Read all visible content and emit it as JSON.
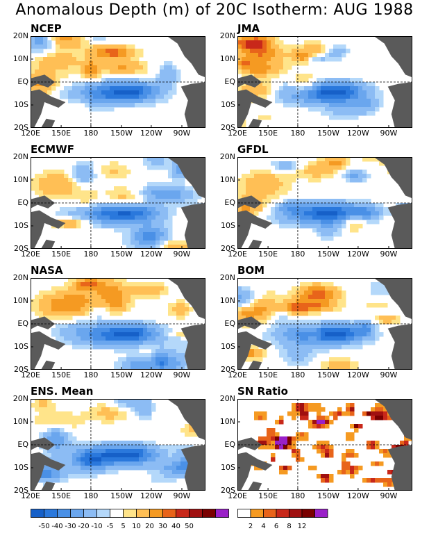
{
  "title": "Anomalous Depth (m) of 20C Isotherm: AUG 1988",
  "lat_labels": [
    "20N",
    "10N",
    "EQ",
    "10S",
    "20S"
  ],
  "lon_labels": [
    "120E",
    "150E",
    "180",
    "150W",
    "120W",
    "90W"
  ],
  "panels": [
    {
      "label": "NCEP",
      "field": "anomaly"
    },
    {
      "label": "JMA",
      "field": "anomaly"
    },
    {
      "label": "ECMWF",
      "field": "anomaly"
    },
    {
      "label": "GFDL",
      "field": "anomaly"
    },
    {
      "label": "NASA",
      "field": "anomaly"
    },
    {
      "label": "BOM",
      "field": "anomaly"
    },
    {
      "label": "ENS. Mean",
      "field": "anomaly"
    },
    {
      "label": "SN Ratio",
      "field": "ratio"
    }
  ],
  "colorbar_anomaly": {
    "labels": [
      "-50",
      "-40",
      "-30",
      "-20",
      "-10",
      "-5",
      "5",
      "10",
      "20",
      "30",
      "40",
      "50"
    ],
    "colors": [
      "#1660c8",
      "#2a78dc",
      "#4a90e6",
      "#6aa6ee",
      "#8cbcf4",
      "#b4d8fa",
      "#ffffff",
      "#ffe48a",
      "#ffbf55",
      "#f59a22",
      "#e8641a",
      "#c8281a",
      "#a01010",
      "#7a0000",
      "#9a20c8"
    ]
  },
  "colorbar_ratio": {
    "labels": [
      "2",
      "4",
      "6",
      "8",
      "12"
    ],
    "colors": [
      "#ffffff",
      "#f59a22",
      "#e8641a",
      "#c8281a",
      "#a01010",
      "#7a0000",
      "#9a20c8"
    ]
  },
  "colors": {
    "land": "#5a5a5a",
    "grid": "#000000"
  }
}
